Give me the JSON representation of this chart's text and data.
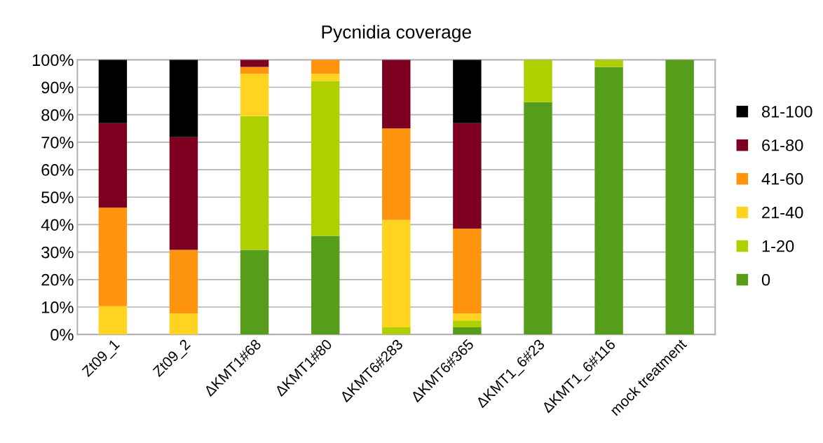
{
  "chart_data": {
    "type": "bar",
    "title": "Pycnidia coverage",
    "stacked": true,
    "categories": [
      "Zt09_1",
      "Zt09_2",
      "ΔKMT1#68",
      "ΔKMT1#80",
      "ΔKMT6#283",
      "ΔKMT6#365",
      "ΔKMT1_6#23",
      "ΔKMT1_6#116",
      "mock treatment"
    ],
    "series": [
      {
        "name": "0",
        "color": "#579d1c",
        "values": [
          0,
          0,
          30.8,
          35.9,
          0,
          2.6,
          84.6,
          97.4,
          100
        ]
      },
      {
        "name": "1-20",
        "color": "#aecf00",
        "values": [
          0,
          0,
          48.7,
          56.4,
          2.6,
          2.5,
          15.4,
          2.6,
          0
        ]
      },
      {
        "name": "21-40",
        "color": "#ffd320",
        "values": [
          10.3,
          7.7,
          15.4,
          2.6,
          39.1,
          2.6,
          0,
          0,
          0
        ]
      },
      {
        "name": "41-60",
        "color": "#ff950e",
        "values": [
          35.9,
          23.1,
          2.5,
          5.1,
          33.3,
          30.8,
          0,
          0,
          0
        ]
      },
      {
        "name": "61-80",
        "color": "#7e0021",
        "values": [
          30.7,
          41.0,
          2.6,
          0,
          25.0,
          38.4,
          0,
          0,
          0
        ]
      },
      {
        "name": "81-100",
        "color": "#000000",
        "values": [
          23.1,
          28.2,
          0,
          0,
          0,
          23.1,
          0,
          0,
          0
        ]
      }
    ],
    "ylim": [
      0,
      100
    ],
    "yticks": [
      {
        "value": 0,
        "label": "0%"
      },
      {
        "value": 10,
        "label": "10%"
      },
      {
        "value": 20,
        "label": "20%"
      },
      {
        "value": 30,
        "label": "30%"
      },
      {
        "value": 40,
        "label": "40%"
      },
      {
        "value": 50,
        "label": "50%"
      },
      {
        "value": 60,
        "label": "60%"
      },
      {
        "value": 70,
        "label": "70%"
      },
      {
        "value": 80,
        "label": "80%"
      },
      {
        "value": 90,
        "label": "90%"
      },
      {
        "value": 100,
        "label": "100%"
      }
    ],
    "grid": "y",
    "legend": "right"
  }
}
